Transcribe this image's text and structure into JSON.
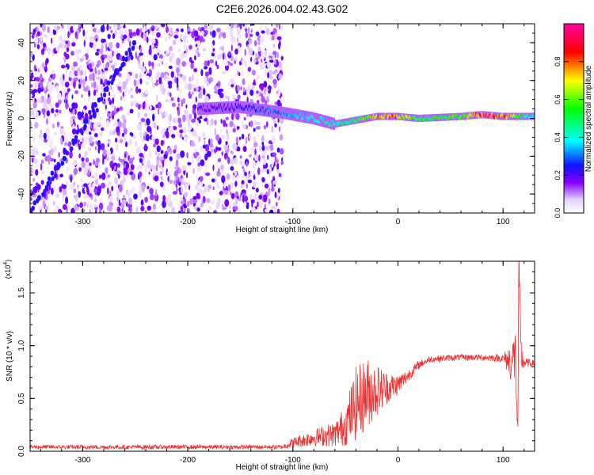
{
  "title": "C2E6.2026.004.02.43.G02",
  "chart_data": [
    {
      "type": "heatmap",
      "xlabel": "Height of straight line (km)",
      "ylabel": "Frequency (Hz)",
      "xlim": [
        -350,
        130
      ],
      "ylim": [
        -50,
        50
      ],
      "xticks": [
        -300,
        -200,
        -100,
        0,
        100
      ],
      "yticks": [
        -40,
        -20,
        0,
        20,
        40
      ],
      "colorbar": {
        "label": "Normalized spectral amplitude",
        "range": [
          0.0,
          1.0
        ],
        "ticks": [
          "0.0",
          "0.2",
          "0.4",
          "0.6",
          "0.8"
        ],
        "colors": [
          "#ffffff",
          "#8800ff",
          "#0000ff",
          "#00ffff",
          "#00ff00",
          "#ffff00",
          "#ff0000",
          "#ff00aa"
        ]
      },
      "features": {
        "noise_region_x": [
          -350,
          -110
        ],
        "diagonal_streak": {
          "x": [
            -350,
            -250
          ],
          "y": [
            -50,
            40
          ]
        },
        "main_band": {
          "x": [
            -190,
            -150,
            -110,
            -80,
            -60,
            -40,
            -20,
            0,
            20,
            60,
            80,
            100,
            115,
            130
          ],
          "y": [
            5,
            6,
            3,
            0,
            -3,
            -1,
            1,
            1,
            0,
            1,
            2,
            1,
            1,
            1
          ],
          "amplitude": [
            0.2,
            0.25,
            0.35,
            0.45,
            0.5,
            0.55,
            0.85,
            0.8,
            0.55,
            0.6,
            0.9,
            0.85,
            0.6,
            0.45
          ]
        }
      }
    },
    {
      "type": "line",
      "xlabel": "Height of straight line (km)",
      "ylabel": "SNR (10 * v/v)",
      "yscale_label": "(x10",
      "yscale_exp": "4",
      "scale_factor": 10000,
      "xlim": [
        -350,
        130
      ],
      "ylim": [
        0,
        1.8
      ],
      "xticks": [
        -300,
        -200,
        -100,
        0,
        100
      ],
      "yticks": [
        "0.0",
        "0.5",
        "1.0",
        "1.5"
      ],
      "series": [
        {
          "color": "#ee3030",
          "x": [
            -350,
            -300,
            -250,
            -200,
            -150,
            -110,
            -100,
            -80,
            -60,
            -50,
            -40,
            -30,
            -20,
            -10,
            0,
            10,
            20,
            30,
            40,
            60,
            80,
            100,
            108,
            112,
            114,
            115,
            117,
            120,
            130
          ],
          "y": [
            0.04,
            0.04,
            0.04,
            0.04,
            0.04,
            0.04,
            0.08,
            0.13,
            0.16,
            0.25,
            0.45,
            0.55,
            0.58,
            0.6,
            0.63,
            0.72,
            0.82,
            0.87,
            0.88,
            0.89,
            0.89,
            0.88,
            0.85,
            0.9,
            0.1,
            1.8,
            0.9,
            0.84,
            0.83
          ],
          "noise_amp": [
            0.02,
            0.02,
            0.02,
            0.02,
            0.02,
            0.02,
            0.05,
            0.08,
            0.12,
            0.2,
            0.35,
            0.35,
            0.25,
            0.15,
            0.1,
            0.06,
            0.04,
            0.03,
            0.03,
            0.03,
            0.03,
            0.04,
            0.2,
            0.3,
            0.1,
            0.2,
            0.2,
            0.05,
            0.03
          ]
        }
      ]
    }
  ]
}
